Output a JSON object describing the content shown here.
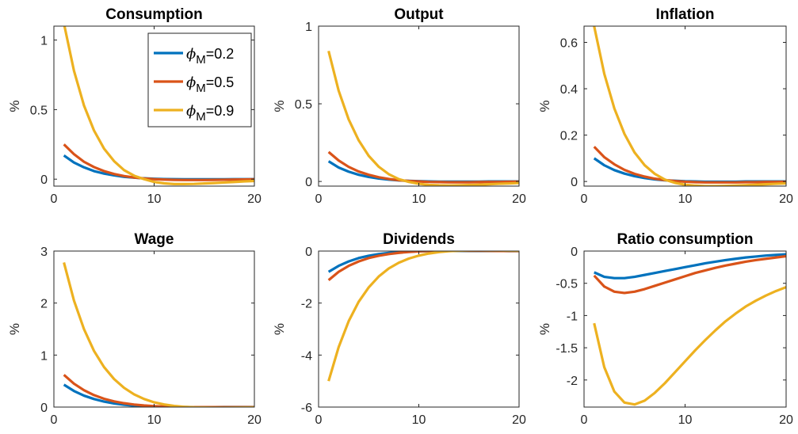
{
  "chart_data": [
    {
      "type": "line",
      "title": "Consumption",
      "ylabel": "%",
      "xlim": [
        0,
        20
      ],
      "ylim": [
        -0.05,
        1.1
      ],
      "xticks": [
        0,
        10,
        20
      ],
      "yticks": [
        0,
        0.5,
        1
      ],
      "ytick_labels": [
        "0",
        "0.5",
        "1"
      ],
      "x": [
        1,
        2,
        3,
        4,
        5,
        6,
        7,
        8,
        9,
        10,
        11,
        12,
        13,
        14,
        15,
        16,
        17,
        18,
        19,
        20
      ],
      "legend": {
        "placement": "top-right",
        "entries": [
          {
            "symbol": "ϕ",
            "sub": "M",
            "text": "=0.2"
          },
          {
            "symbol": "ϕ",
            "sub": "M",
            "text": "=0.5"
          },
          {
            "symbol": "ϕ",
            "sub": "M",
            "text": "=0.9"
          }
        ]
      },
      "series": [
        {
          "values": [
            0.17,
            0.12,
            0.085,
            0.058,
            0.04,
            0.027,
            0.017,
            0.011,
            0.006,
            0.003,
            0.001,
            0.0,
            -0.001,
            -0.001,
            -0.001,
            -0.001,
            -0.001,
            0.0,
            0.0,
            0.0
          ]
        },
        {
          "values": [
            0.25,
            0.18,
            0.125,
            0.087,
            0.058,
            0.037,
            0.022,
            0.012,
            0.005,
            0.0,
            -0.003,
            -0.005,
            -0.006,
            -0.006,
            -0.006,
            -0.005,
            -0.004,
            -0.003,
            -0.002,
            -0.001
          ]
        },
        {
          "values": [
            1.12,
            0.78,
            0.53,
            0.35,
            0.22,
            0.13,
            0.065,
            0.025,
            0.0,
            -0.02,
            -0.03,
            -0.035,
            -0.035,
            -0.034,
            -0.031,
            -0.028,
            -0.024,
            -0.02,
            -0.016,
            -0.013
          ]
        }
      ]
    },
    {
      "type": "line",
      "title": "Output",
      "ylabel": "%",
      "xlim": [
        0,
        20
      ],
      "ylim": [
        -0.03,
        1.0
      ],
      "xticks": [
        0,
        10,
        20
      ],
      "yticks": [
        0,
        0.5,
        1
      ],
      "ytick_labels": [
        "0",
        "0.5",
        "1"
      ],
      "x": [
        1,
        2,
        3,
        4,
        5,
        6,
        7,
        8,
        9,
        10,
        11,
        12,
        13,
        14,
        15,
        16,
        17,
        18,
        19,
        20
      ],
      "series": [
        {
          "values": [
            0.13,
            0.09,
            0.063,
            0.043,
            0.029,
            0.019,
            0.012,
            0.007,
            0.004,
            0.002,
            0.0,
            -0.001,
            -0.001,
            -0.001,
            -0.001,
            -0.001,
            0.0,
            0.0,
            0.0,
            0.0
          ]
        },
        {
          "values": [
            0.19,
            0.135,
            0.094,
            0.064,
            0.043,
            0.027,
            0.016,
            0.008,
            0.003,
            0.0,
            -0.003,
            -0.004,
            -0.005,
            -0.005,
            -0.005,
            -0.004,
            -0.003,
            -0.003,
            -0.002,
            -0.001
          ]
        },
        {
          "values": [
            0.84,
            0.585,
            0.4,
            0.265,
            0.165,
            0.095,
            0.047,
            0.015,
            -0.003,
            -0.015,
            -0.022,
            -0.025,
            -0.026,
            -0.025,
            -0.023,
            -0.021,
            -0.018,
            -0.015,
            -0.013,
            -0.01
          ]
        }
      ]
    },
    {
      "type": "line",
      "title": "Inflation",
      "ylabel": "%",
      "xlim": [
        0,
        20
      ],
      "ylim": [
        -0.02,
        0.67
      ],
      "xticks": [
        0,
        10,
        20
      ],
      "yticks": [
        0,
        0.2,
        0.4,
        0.6
      ],
      "ytick_labels": [
        "0",
        "0.2",
        "0.4",
        "0.6"
      ],
      "x": [
        1,
        2,
        3,
        4,
        5,
        6,
        7,
        8,
        9,
        10,
        11,
        12,
        13,
        14,
        15,
        16,
        17,
        18,
        19,
        20
      ],
      "series": [
        {
          "values": [
            0.1,
            0.07,
            0.049,
            0.034,
            0.023,
            0.015,
            0.009,
            0.005,
            0.003,
            0.001,
            0.0,
            -0.001,
            -0.001,
            -0.001,
            -0.001,
            0.0,
            0.0,
            0.0,
            0.0,
            0.0
          ]
        },
        {
          "values": [
            0.15,
            0.105,
            0.074,
            0.05,
            0.033,
            0.021,
            0.012,
            0.006,
            0.002,
            -0.001,
            -0.003,
            -0.004,
            -0.004,
            -0.004,
            -0.004,
            -0.003,
            -0.003,
            -0.002,
            -0.002,
            -0.001
          ]
        },
        {
          "values": [
            0.67,
            0.465,
            0.315,
            0.205,
            0.125,
            0.07,
            0.033,
            0.008,
            -0.006,
            -0.014,
            -0.018,
            -0.02,
            -0.02,
            -0.019,
            -0.018,
            -0.016,
            -0.014,
            -0.012,
            -0.01,
            -0.008
          ]
        }
      ]
    },
    {
      "type": "line",
      "title": "Wage",
      "ylabel": "%",
      "xlim": [
        0,
        20
      ],
      "ylim": [
        0,
        3
      ],
      "xticks": [
        0,
        10,
        20
      ],
      "yticks": [
        0,
        1,
        2,
        3
      ],
      "ytick_labels": [
        "0",
        "1",
        "2",
        "3"
      ],
      "x": [
        1,
        2,
        3,
        4,
        5,
        6,
        7,
        8,
        9,
        10,
        11,
        12,
        13,
        14,
        15,
        16,
        17,
        18,
        19,
        20
      ],
      "series": [
        {
          "values": [
            0.43,
            0.31,
            0.22,
            0.155,
            0.105,
            0.07,
            0.046,
            0.029,
            0.017,
            0.009,
            0.004,
            0.001,
            0.0,
            -0.001,
            -0.001,
            -0.001,
            0.0,
            0.0,
            0.0,
            0.0
          ]
        },
        {
          "values": [
            0.62,
            0.45,
            0.325,
            0.23,
            0.16,
            0.11,
            0.074,
            0.048,
            0.03,
            0.018,
            0.009,
            0.004,
            0.001,
            -0.001,
            -0.002,
            -0.002,
            -0.002,
            -0.001,
            -0.001,
            -0.001
          ]
        },
        {
          "values": [
            2.78,
            2.05,
            1.5,
            1.08,
            0.77,
            0.54,
            0.37,
            0.245,
            0.155,
            0.092,
            0.05,
            0.022,
            0.005,
            -0.005,
            -0.01,
            -0.012,
            -0.012,
            -0.011,
            -0.009,
            -0.007
          ]
        }
      ]
    },
    {
      "type": "line",
      "title": "Dividends",
      "ylabel": "%",
      "xlim": [
        0,
        20
      ],
      "ylim": [
        -6,
        0
      ],
      "xticks": [
        0,
        10,
        20
      ],
      "yticks": [
        -6,
        -4,
        -2,
        0
      ],
      "ytick_labels": [
        "-6",
        "-4",
        "-2",
        "0"
      ],
      "x": [
        1,
        2,
        3,
        4,
        5,
        6,
        7,
        8,
        9,
        10,
        11,
        12,
        13,
        14,
        15,
        16,
        17,
        18,
        19,
        20
      ],
      "series": [
        {
          "values": [
            -0.8,
            -0.57,
            -0.4,
            -0.27,
            -0.18,
            -0.115,
            -0.07,
            -0.04,
            -0.02,
            -0.007,
            0.0,
            0.004,
            0.006,
            0.006,
            0.005,
            0.004,
            0.003,
            0.002,
            0.001,
            0.0
          ]
        },
        {
          "values": [
            -1.12,
            -0.8,
            -0.57,
            -0.4,
            -0.27,
            -0.18,
            -0.115,
            -0.068,
            -0.035,
            -0.013,
            0.002,
            0.01,
            0.014,
            0.014,
            0.012,
            0.01,
            0.007,
            0.005,
            0.003,
            0.002
          ]
        },
        {
          "values": [
            -5.0,
            -3.7,
            -2.7,
            -1.95,
            -1.4,
            -0.98,
            -0.67,
            -0.45,
            -0.29,
            -0.175,
            -0.095,
            -0.04,
            -0.005,
            0.015,
            0.025,
            0.028,
            0.027,
            0.024,
            0.02,
            0.016
          ]
        }
      ]
    },
    {
      "type": "line",
      "title": "Ratio consumption",
      "ylabel": "%",
      "xlim": [
        0,
        20
      ],
      "ylim": [
        -2.42,
        0
      ],
      "xticks": [
        0,
        10,
        20
      ],
      "yticks": [
        -2,
        -1.5,
        -1,
        -0.5,
        0
      ],
      "ytick_labels": [
        "-2",
        "-1.5",
        "-1",
        "-0.5",
        "0"
      ],
      "x": [
        1,
        2,
        3,
        4,
        5,
        6,
        7,
        8,
        9,
        10,
        11,
        12,
        13,
        14,
        15,
        16,
        17,
        18,
        19,
        20
      ],
      "series": [
        {
          "values": [
            -0.33,
            -0.4,
            -0.42,
            -0.42,
            -0.4,
            -0.37,
            -0.34,
            -0.31,
            -0.28,
            -0.25,
            -0.22,
            -0.19,
            -0.165,
            -0.14,
            -0.12,
            -0.1,
            -0.085,
            -0.07,
            -0.06,
            -0.05
          ]
        },
        {
          "values": [
            -0.38,
            -0.55,
            -0.63,
            -0.65,
            -0.63,
            -0.59,
            -0.54,
            -0.49,
            -0.44,
            -0.39,
            -0.34,
            -0.3,
            -0.26,
            -0.225,
            -0.195,
            -0.165,
            -0.14,
            -0.12,
            -0.1,
            -0.08
          ]
        },
        {
          "values": [
            -1.12,
            -1.8,
            -2.18,
            -2.35,
            -2.38,
            -2.32,
            -2.2,
            -2.05,
            -1.88,
            -1.71,
            -1.54,
            -1.38,
            -1.23,
            -1.09,
            -0.97,
            -0.86,
            -0.77,
            -0.69,
            -0.62,
            -0.56
          ]
        }
      ]
    }
  ],
  "colors": {
    "series": [
      "#0072bd",
      "#d95319",
      "#edb120"
    ],
    "axis": "#262626"
  }
}
